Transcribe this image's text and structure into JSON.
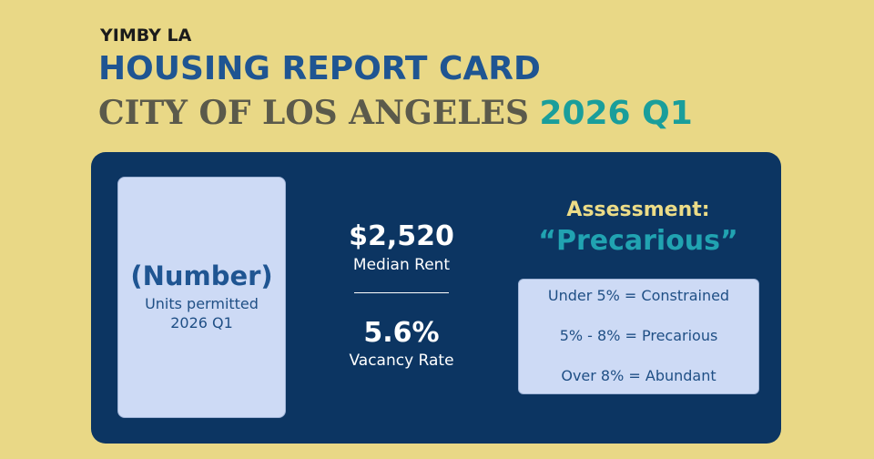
{
  "header": {
    "org": "YIMBY LA",
    "title": "HOUSING REPORT CARD",
    "city": "CITY OF LOS ANGELES",
    "period": "2026 Q1"
  },
  "permits": {
    "value": "(Number)",
    "label_line1": "Units permitted",
    "label_line2": "2026 Q1"
  },
  "stats": [
    {
      "value": "$2,520",
      "label": "Median Rent"
    },
    {
      "value": "5.6%",
      "label": "Vacancy Rate"
    }
  ],
  "assessment": {
    "heading": "Assessment:",
    "rating": "“Precarious”",
    "scale": [
      "Under 5% = Constrained",
      "5% - 8% = Precarious",
      "Over 8% = Abundant"
    ]
  }
}
